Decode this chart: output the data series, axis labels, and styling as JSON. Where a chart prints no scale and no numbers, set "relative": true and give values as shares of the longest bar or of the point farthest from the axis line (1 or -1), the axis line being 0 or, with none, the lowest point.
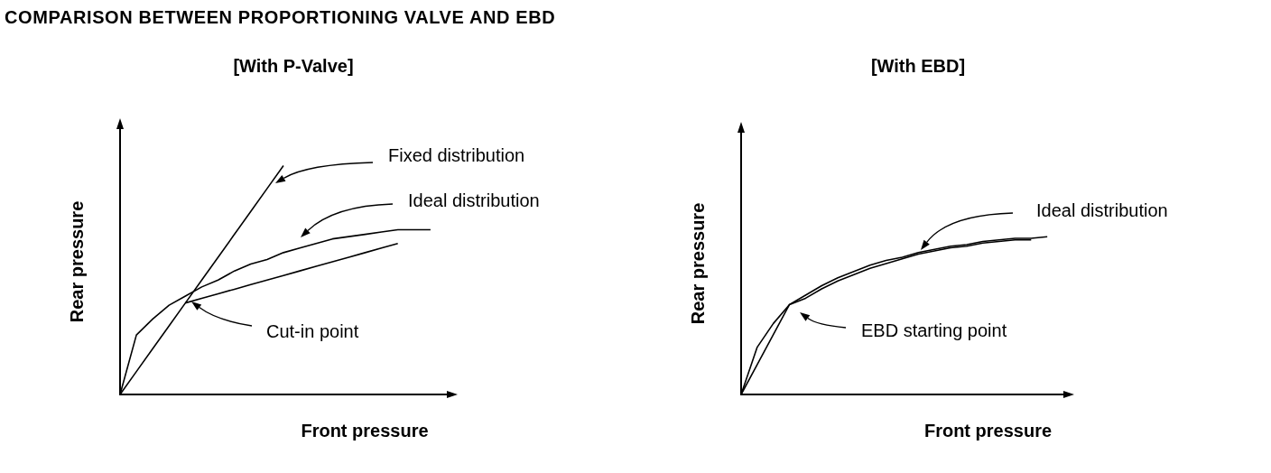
{
  "chart_data": [
    {
      "type": "line",
      "title": "COMPARISON BETWEEN PROPORTIONING VALVE AND EBD",
      "subtitle": "[With P-Valve]",
      "xlabel": "Front pressure",
      "ylabel": "Rear pressure",
      "relative": true,
      "marker": "none",
      "annotations": [
        "Fixed distribution",
        "Ideal distribution",
        "Cut-in point"
      ],
      "categories": [
        null,
        null,
        null,
        null,
        null,
        null,
        null,
        null,
        null,
        null,
        null,
        null,
        null,
        null,
        null,
        null,
        null,
        null,
        null,
        null,
        null
      ],
      "series": [
        {
          "color": "#000000",
          "values": [
            0,
            0.1,
            0.2,
            0.3,
            0.4,
            0.5,
            0.6,
            0.7,
            0.8,
            0.9,
            1,
            null,
            null,
            null,
            null,
            null,
            null,
            null,
            null,
            null,
            null
          ]
        },
        {
          "color": "#000000",
          "values": [
            0,
            0.26,
            0.33,
            0.39,
            0.43,
            0.47,
            0.5,
            0.54,
            0.57,
            0.59,
            0.62,
            0.64,
            0.66,
            0.68,
            0.69,
            0.7,
            0.71,
            0.72,
            0.72,
            0.72,
            null
          ]
        },
        {
          "color": "#000000",
          "values": [
            null,
            null,
            null,
            null,
            0.4,
            0.42,
            0.44,
            0.46,
            0.48,
            0.5,
            0.52,
            0.54,
            0.56,
            0.58,
            0.6,
            0.62,
            0.64,
            0.66,
            null,
            null,
            null
          ]
        }
      ]
    },
    {
      "type": "line",
      "subtitle": "[With EBD]",
      "xlabel": "Front pressure",
      "ylabel": "Rear pressure",
      "relative": true,
      "marker": "none",
      "annotations": [
        "Ideal distribution",
        "EBD starting point"
      ],
      "categories": [
        null,
        null,
        null,
        null,
        null,
        null,
        null,
        null,
        null,
        null,
        null,
        null,
        null,
        null,
        null,
        null,
        null,
        null,
        null,
        null,
        null
      ],
      "series": [
        {
          "color": "#000000",
          "values": [
            0,
            0.3,
            0.45,
            0.57,
            0.63,
            0.69,
            0.74,
            0.78,
            0.82,
            0.85,
            0.87,
            0.9,
            0.92,
            0.94,
            0.95,
            0.97,
            0.98,
            0.99,
            0.99,
            1,
            null
          ]
        },
        {
          "color": "#000000",
          "values": [
            0,
            0.19,
            0.38,
            0.57,
            0.61,
            0.67,
            0.72,
            0.76,
            0.8,
            0.83,
            0.86,
            0.89,
            0.91,
            0.93,
            0.94,
            0.96,
            0.97,
            0.98,
            0.98,
            null,
            null
          ]
        }
      ]
    }
  ]
}
